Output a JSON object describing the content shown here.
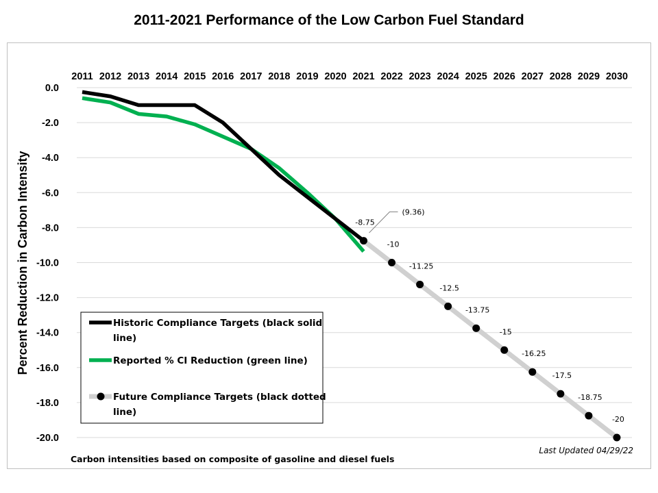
{
  "chart_data": {
    "type": "line",
    "title": "2011-2021 Performance of the Low Carbon Fuel Standard",
    "ylabel": "Percent Reduction in Carbon Intensity",
    "xlabel": "",
    "x": [
      "2011",
      "2012",
      "2013",
      "2014",
      "2015",
      "2016",
      "2017",
      "2018",
      "2019",
      "2020",
      "2021",
      "2022",
      "2023",
      "2024",
      "2025",
      "2026",
      "2027",
      "2028",
      "2029",
      "2030"
    ],
    "ylim": [
      -20.0,
      0.0
    ],
    "yticks": [
      "0.0",
      "-2.0",
      "-4.0",
      "-6.0",
      "-8.0",
      "-10.0",
      "-12.0",
      "-14.0",
      "-16.0",
      "-18.0",
      "-20.0"
    ],
    "x_axis_position": "top",
    "grid": true,
    "legend_position": "bottom-left",
    "series": [
      {
        "name": "Historic Compliance Targets (black solid line)",
        "color": "#000000",
        "style": "solid",
        "x": [
          "2011",
          "2012",
          "2013",
          "2014",
          "2015",
          "2016",
          "2017",
          "2018",
          "2019",
          "2020",
          "2021"
        ],
        "values": [
          -0.25,
          -0.5,
          -1.0,
          -1.0,
          -1.0,
          -2.0,
          -3.5,
          -5.0,
          -6.25,
          -7.5,
          -8.75
        ]
      },
      {
        "name": "Reported % CI Reduction (green line)",
        "color": "#00b050",
        "style": "solid",
        "x": [
          "2011",
          "2012",
          "2013",
          "2014",
          "2015",
          "2016",
          "2017",
          "2018",
          "2019",
          "2020",
          "2021"
        ],
        "values": [
          -0.6,
          -0.85,
          -1.5,
          -1.65,
          -2.1,
          -2.8,
          -3.5,
          -4.6,
          -6.0,
          -7.5,
          -9.36
        ]
      },
      {
        "name": "Future Compliance Targets (black dotted line)",
        "color": "#000000",
        "line_color": "#d0d0d0",
        "style": "markers",
        "x": [
          "2021",
          "2022",
          "2023",
          "2024",
          "2025",
          "2026",
          "2027",
          "2028",
          "2029",
          "2030"
        ],
        "values": [
          -8.75,
          -10,
          -11.25,
          -12.5,
          -13.75,
          -15,
          -16.25,
          -17.5,
          -18.75,
          -20
        ]
      }
    ],
    "data_labels": [
      {
        "x": "2021",
        "text": "-8.75"
      },
      {
        "x": "2022",
        "text": "-10"
      },
      {
        "x": "2023",
        "text": "-11.25"
      },
      {
        "x": "2024",
        "text": "-12.5"
      },
      {
        "x": "2025",
        "text": "-13.75"
      },
      {
        "x": "2026",
        "text": "-15"
      },
      {
        "x": "2027",
        "text": "-16.25"
      },
      {
        "x": "2028",
        "text": "-17.5"
      },
      {
        "x": "2029",
        "text": "-18.75"
      },
      {
        "x": "2030",
        "text": "-20"
      }
    ],
    "callout": {
      "text": "(9.36)",
      "color": "#00b050"
    },
    "footnote": "Carbon intensities based on composite of gasoline and diesel fuels",
    "updated": "Last Updated 04/29/22"
  }
}
